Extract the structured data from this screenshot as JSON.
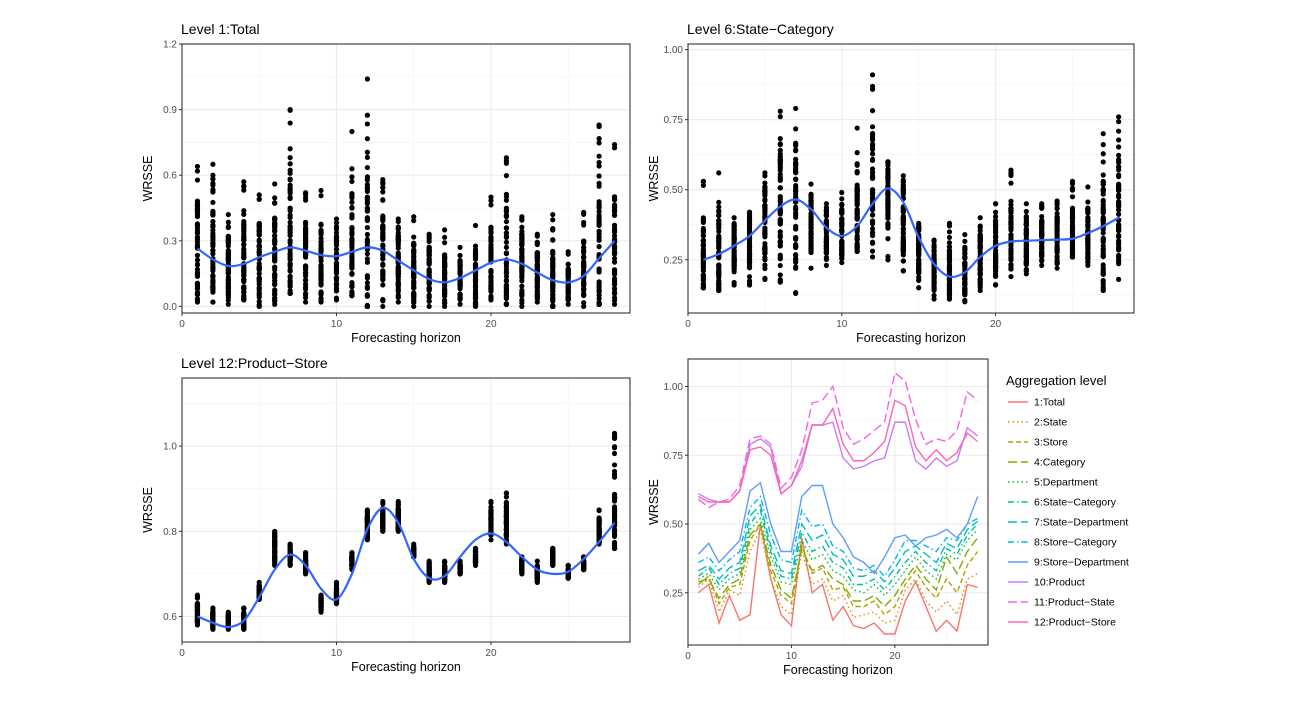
{
  "chart_data": [
    {
      "type": "scatter",
      "title": "Level 1:Total",
      "xlabel": "Forecasting horizon",
      "ylabel": "WRSSE",
      "xlim": [
        0,
        29
      ],
      "ylim": [
        -0.03,
        1.2
      ],
      "xticks": [
        0,
        10,
        20
      ],
      "yticks": [
        0.0,
        0.3,
        0.6,
        0.9,
        1.2
      ],
      "ytick_labels": [
        "0.0",
        "0.3",
        "0.6",
        "0.9",
        "1.2"
      ],
      "xtick_labels": [
        "0",
        "10",
        "20"
      ],
      "points": {
        "x": [
          1,
          2,
          3,
          4,
          5,
          6,
          7,
          8,
          9,
          10,
          11,
          12,
          13,
          14,
          15,
          16,
          17,
          18,
          19,
          20,
          21,
          22,
          23,
          24,
          25,
          26,
          27,
          28
        ],
        "min": [
          0.02,
          0.02,
          0.01,
          0.03,
          0.0,
          0.01,
          0.06,
          0.02,
          0.02,
          0.03,
          0.05,
          0.0,
          0.0,
          0.02,
          0.0,
          0.0,
          0.0,
          0.01,
          0.0,
          0.03,
          0.01,
          0.0,
          0.02,
          0.0,
          0.01,
          0.0,
          0.01,
          0.01
        ],
        "max": [
          0.64,
          0.65,
          0.42,
          0.57,
          0.51,
          0.56,
          0.9,
          0.52,
          0.53,
          0.4,
          0.8,
          1.04,
          0.58,
          0.4,
          0.41,
          0.33,
          0.35,
          0.27,
          0.37,
          0.5,
          0.68,
          0.41,
          0.33,
          0.42,
          0.25,
          0.43,
          0.83,
          0.74
        ],
        "mean": [
          0.25,
          0.22,
          0.17,
          0.2,
          0.22,
          0.22,
          0.25,
          0.21,
          0.2,
          0.2,
          0.26,
          0.25,
          0.22,
          0.2,
          0.16,
          0.15,
          0.12,
          0.12,
          0.13,
          0.2,
          0.22,
          0.19,
          0.14,
          0.12,
          0.11,
          0.15,
          0.2,
          0.27
        ]
      },
      "smooth": {
        "x": [
          1,
          2,
          3,
          4,
          5,
          6,
          7,
          8,
          9,
          10,
          11,
          12,
          13,
          14,
          15,
          16,
          17,
          18,
          19,
          20,
          21,
          22,
          23,
          24,
          25,
          26,
          27,
          28
        ],
        "y": [
          0.265,
          0.215,
          0.185,
          0.195,
          0.225,
          0.25,
          0.27,
          0.255,
          0.235,
          0.23,
          0.25,
          0.27,
          0.255,
          0.21,
          0.165,
          0.125,
          0.11,
          0.13,
          0.165,
          0.2,
          0.215,
          0.195,
          0.155,
          0.12,
          0.11,
          0.14,
          0.22,
          0.3
        ]
      }
    },
    {
      "type": "scatter",
      "title": "Level 6:State−Category",
      "xlabel": "Forecasting horizon",
      "ylabel": "WRSSE",
      "xlim": [
        0,
        29
      ],
      "ylim": [
        0.06,
        1.02
      ],
      "xticks": [
        0,
        10,
        20
      ],
      "yticks": [
        0.25,
        0.5,
        0.75,
        1.0
      ],
      "ytick_labels": [
        "0.25",
        "0.50",
        "0.75",
        "1.00"
      ],
      "xtick_labels": [
        "0",
        "10",
        "20"
      ],
      "points": {
        "x": [
          1,
          2,
          3,
          4,
          5,
          6,
          7,
          8,
          9,
          10,
          11,
          12,
          13,
          14,
          15,
          16,
          17,
          18,
          19,
          20,
          21,
          22,
          23,
          24,
          25,
          26,
          27,
          28
        ],
        "min": [
          0.15,
          0.14,
          0.16,
          0.16,
          0.18,
          0.17,
          0.13,
          0.22,
          0.23,
          0.24,
          0.28,
          0.26,
          0.25,
          0.21,
          0.15,
          0.11,
          0.11,
          0.1,
          0.14,
          0.16,
          0.19,
          0.2,
          0.23,
          0.22,
          0.26,
          0.23,
          0.14,
          0.18
        ],
        "max": [
          0.53,
          0.56,
          0.4,
          0.42,
          0.56,
          0.78,
          0.79,
          0.52,
          0.45,
          0.49,
          0.72,
          0.91,
          0.6,
          0.55,
          0.38,
          0.32,
          0.38,
          0.34,
          0.4,
          0.45,
          0.57,
          0.45,
          0.45,
          0.46,
          0.53,
          0.51,
          0.7,
          0.76
        ],
        "mean": [
          0.27,
          0.28,
          0.3,
          0.31,
          0.38,
          0.46,
          0.45,
          0.38,
          0.35,
          0.35,
          0.42,
          0.48,
          0.48,
          0.4,
          0.28,
          0.21,
          0.2,
          0.21,
          0.25,
          0.29,
          0.32,
          0.32,
          0.32,
          0.32,
          0.33,
          0.34,
          0.37,
          0.42
        ]
      },
      "smooth": {
        "x": [
          1,
          2,
          3,
          4,
          5,
          6,
          7,
          8,
          9,
          10,
          11,
          12,
          13,
          14,
          15,
          16,
          17,
          18,
          19,
          20,
          21,
          22,
          23,
          24,
          25,
          26,
          27,
          28
        ],
        "y": [
          0.25,
          0.27,
          0.3,
          0.335,
          0.39,
          0.44,
          0.465,
          0.43,
          0.365,
          0.335,
          0.37,
          0.45,
          0.505,
          0.455,
          0.33,
          0.235,
          0.19,
          0.205,
          0.26,
          0.3,
          0.315,
          0.318,
          0.32,
          0.322,
          0.325,
          0.345,
          0.37,
          0.4
        ]
      }
    },
    {
      "type": "scatter",
      "title": "Level 12:Product−Store",
      "xlabel": "Forecasting horizon",
      "ylabel": "WRSSE",
      "xlim": [
        0,
        29
      ],
      "ylim": [
        0.54,
        1.16
      ],
      "xticks": [
        0,
        10,
        20
      ],
      "yticks": [
        0.6,
        0.8,
        1.0
      ],
      "ytick_labels": [
        "0.6",
        "0.8",
        "1.0"
      ],
      "xtick_labels": [
        "0",
        "10",
        "20"
      ],
      "points": {
        "x": [
          1,
          2,
          3,
          4,
          5,
          6,
          7,
          8,
          9,
          10,
          11,
          12,
          13,
          14,
          15,
          16,
          17,
          18,
          19,
          20,
          21,
          22,
          23,
          24,
          25,
          26,
          27,
          28
        ],
        "min": [
          0.58,
          0.57,
          0.57,
          0.57,
          0.64,
          0.72,
          0.72,
          0.7,
          0.61,
          0.63,
          0.71,
          0.78,
          0.8,
          0.8,
          0.74,
          0.68,
          0.68,
          0.7,
          0.72,
          0.78,
          0.77,
          0.7,
          0.68,
          0.72,
          0.69,
          0.71,
          0.77,
          0.76
        ],
        "max": [
          0.65,
          0.62,
          0.61,
          0.62,
          0.68,
          0.8,
          0.77,
          0.75,
          0.65,
          0.68,
          0.75,
          0.85,
          0.87,
          0.87,
          0.77,
          0.73,
          0.73,
          0.73,
          0.76,
          0.87,
          0.89,
          0.74,
          0.73,
          0.76,
          0.72,
          0.74,
          0.85,
          1.03
        ],
        "mean": [
          0.61,
          0.59,
          0.59,
          0.59,
          0.66,
          0.76,
          0.74,
          0.72,
          0.63,
          0.65,
          0.73,
          0.81,
          0.83,
          0.83,
          0.75,
          0.7,
          0.7,
          0.71,
          0.74,
          0.82,
          0.82,
          0.72,
          0.7,
          0.74,
          0.7,
          0.72,
          0.8,
          0.8
        ]
      },
      "smooth": {
        "x": [
          1,
          2,
          3,
          4,
          5,
          6,
          7,
          8,
          9,
          10,
          11,
          12,
          13,
          14,
          15,
          16,
          17,
          18,
          19,
          20,
          21,
          22,
          23,
          24,
          25,
          26,
          27,
          28
        ],
        "y": [
          0.6,
          0.585,
          0.575,
          0.59,
          0.645,
          0.71,
          0.745,
          0.72,
          0.665,
          0.64,
          0.7,
          0.805,
          0.855,
          0.82,
          0.735,
          0.69,
          0.695,
          0.74,
          0.78,
          0.795,
          0.775,
          0.74,
          0.71,
          0.7,
          0.705,
          0.735,
          0.775,
          0.82
        ]
      }
    },
    {
      "type": "line",
      "title": "",
      "xlabel": "Forecasting horizon",
      "ylabel": "WRSSE",
      "xlim": [
        0,
        29
      ],
      "ylim": [
        0.06,
        1.1
      ],
      "xticks": [
        0,
        10,
        20
      ],
      "yticks": [
        0.25,
        0.5,
        0.75,
        1.0
      ],
      "ytick_labels": [
        "0.25",
        "0.50",
        "0.75",
        "1.00"
      ],
      "xtick_labels": [
        "0",
        "10",
        "20"
      ],
      "legend_title": "Aggregation level",
      "legend_position": "right",
      "x": [
        1,
        2,
        3,
        4,
        5,
        6,
        7,
        8,
        9,
        10,
        11,
        12,
        13,
        14,
        15,
        16,
        17,
        18,
        19,
        20,
        21,
        22,
        23,
        24,
        25,
        26,
        27,
        28
      ],
      "series": [
        {
          "name": "1:Total",
          "color": "#F8766D",
          "dash": "solid",
          "values": [
            0.25,
            0.28,
            0.14,
            0.24,
            0.15,
            0.17,
            0.5,
            0.3,
            0.17,
            0.13,
            0.45,
            0.25,
            0.28,
            0.15,
            0.2,
            0.13,
            0.12,
            0.14,
            0.1,
            0.1,
            0.22,
            0.29,
            0.2,
            0.11,
            0.15,
            0.11,
            0.28,
            0.27
          ]
        },
        {
          "name": "2:State",
          "color": "#DE8C00",
          "dash": "dot",
          "values": [
            0.27,
            0.3,
            0.18,
            0.26,
            0.24,
            0.4,
            0.48,
            0.3,
            0.2,
            0.17,
            0.4,
            0.28,
            0.3,
            0.22,
            0.24,
            0.16,
            0.17,
            0.18,
            0.14,
            0.15,
            0.26,
            0.3,
            0.22,
            0.18,
            0.22,
            0.17,
            0.3,
            0.32
          ]
        },
        {
          "name": "3:Store",
          "color": "#B79F00",
          "dash": "dash",
          "values": [
            0.28,
            0.31,
            0.21,
            0.27,
            0.28,
            0.44,
            0.5,
            0.33,
            0.24,
            0.21,
            0.42,
            0.32,
            0.34,
            0.26,
            0.27,
            0.2,
            0.2,
            0.22,
            0.17,
            0.2,
            0.28,
            0.33,
            0.27,
            0.23,
            0.3,
            0.25,
            0.35,
            0.4
          ]
        },
        {
          "name": "4:Category",
          "color": "#7CAE00",
          "dash": "longdash",
          "values": [
            0.29,
            0.3,
            0.23,
            0.28,
            0.3,
            0.46,
            0.5,
            0.35,
            0.26,
            0.23,
            0.41,
            0.33,
            0.35,
            0.3,
            0.28,
            0.22,
            0.22,
            0.24,
            0.2,
            0.24,
            0.3,
            0.35,
            0.3,
            0.26,
            0.38,
            0.32,
            0.4,
            0.45
          ]
        },
        {
          "name": "5:Department",
          "color": "#00BA38",
          "dash": "dot",
          "values": [
            0.3,
            0.32,
            0.26,
            0.3,
            0.32,
            0.48,
            0.52,
            0.38,
            0.29,
            0.28,
            0.44,
            0.37,
            0.39,
            0.33,
            0.31,
            0.26,
            0.25,
            0.28,
            0.24,
            0.28,
            0.33,
            0.38,
            0.33,
            0.3,
            0.39,
            0.37,
            0.44,
            0.48
          ]
        },
        {
          "name": "6:State−Category",
          "color": "#00C08B",
          "dash": "dashdot",
          "values": [
            0.31,
            0.34,
            0.28,
            0.32,
            0.34,
            0.5,
            0.55,
            0.4,
            0.31,
            0.3,
            0.47,
            0.4,
            0.42,
            0.36,
            0.34,
            0.28,
            0.28,
            0.3,
            0.26,
            0.31,
            0.36,
            0.4,
            0.36,
            0.33,
            0.41,
            0.39,
            0.46,
            0.5
          ]
        },
        {
          "name": "7:State−Department",
          "color": "#00BFC4",
          "dash": "longdash",
          "values": [
            0.33,
            0.35,
            0.3,
            0.34,
            0.36,
            0.53,
            0.57,
            0.42,
            0.33,
            0.32,
            0.5,
            0.44,
            0.46,
            0.39,
            0.37,
            0.31,
            0.31,
            0.33,
            0.29,
            0.34,
            0.4,
            0.42,
            0.39,
            0.36,
            0.43,
            0.41,
            0.48,
            0.51
          ]
        },
        {
          "name": "8:Store−Category",
          "color": "#00B4F0",
          "dash": "dashdot",
          "values": [
            0.36,
            0.38,
            0.33,
            0.37,
            0.4,
            0.56,
            0.6,
            0.46,
            0.37,
            0.36,
            0.55,
            0.49,
            0.5,
            0.42,
            0.4,
            0.34,
            0.33,
            0.35,
            0.31,
            0.37,
            0.44,
            0.44,
            0.42,
            0.4,
            0.45,
            0.44,
            0.5,
            0.52
          ]
        },
        {
          "name": "9:Store−Department",
          "color": "#619CFF",
          "dash": "solid",
          "values": [
            0.39,
            0.43,
            0.36,
            0.4,
            0.44,
            0.62,
            0.65,
            0.5,
            0.4,
            0.4,
            0.6,
            0.64,
            0.64,
            0.5,
            0.45,
            0.38,
            0.36,
            0.32,
            0.38,
            0.45,
            0.46,
            0.42,
            0.45,
            0.46,
            0.48,
            0.45,
            0.5,
            0.6
          ]
        },
        {
          "name": "10:Product",
          "color": "#C77CFF",
          "dash": "solid",
          "values": [
            0.61,
            0.59,
            0.58,
            0.58,
            0.62,
            0.79,
            0.81,
            0.78,
            0.61,
            0.64,
            0.71,
            0.86,
            0.86,
            0.87,
            0.74,
            0.7,
            0.71,
            0.73,
            0.74,
            0.87,
            0.87,
            0.73,
            0.7,
            0.74,
            0.71,
            0.73,
            0.85,
            0.82
          ]
        },
        {
          "name": "11:Product−State",
          "color": "#F564E3",
          "dash": "longdash",
          "values": [
            0.59,
            0.56,
            0.58,
            0.59,
            0.64,
            0.81,
            0.82,
            0.79,
            0.63,
            0.67,
            0.77,
            0.94,
            0.95,
            1.0,
            0.85,
            0.79,
            0.81,
            0.84,
            0.87,
            1.05,
            1.02,
            0.88,
            0.79,
            0.81,
            0.8,
            0.84,
            0.98,
            0.95
          ]
        },
        {
          "name": "12:Product−Store",
          "color": "#FF64B0",
          "dash": "solid",
          "values": [
            0.6,
            0.58,
            0.58,
            0.58,
            0.62,
            0.77,
            0.78,
            0.75,
            0.61,
            0.64,
            0.73,
            0.86,
            0.86,
            0.92,
            0.79,
            0.73,
            0.73,
            0.76,
            0.8,
            0.95,
            0.93,
            0.78,
            0.73,
            0.77,
            0.73,
            0.76,
            0.83,
            0.8
          ]
        }
      ]
    }
  ]
}
